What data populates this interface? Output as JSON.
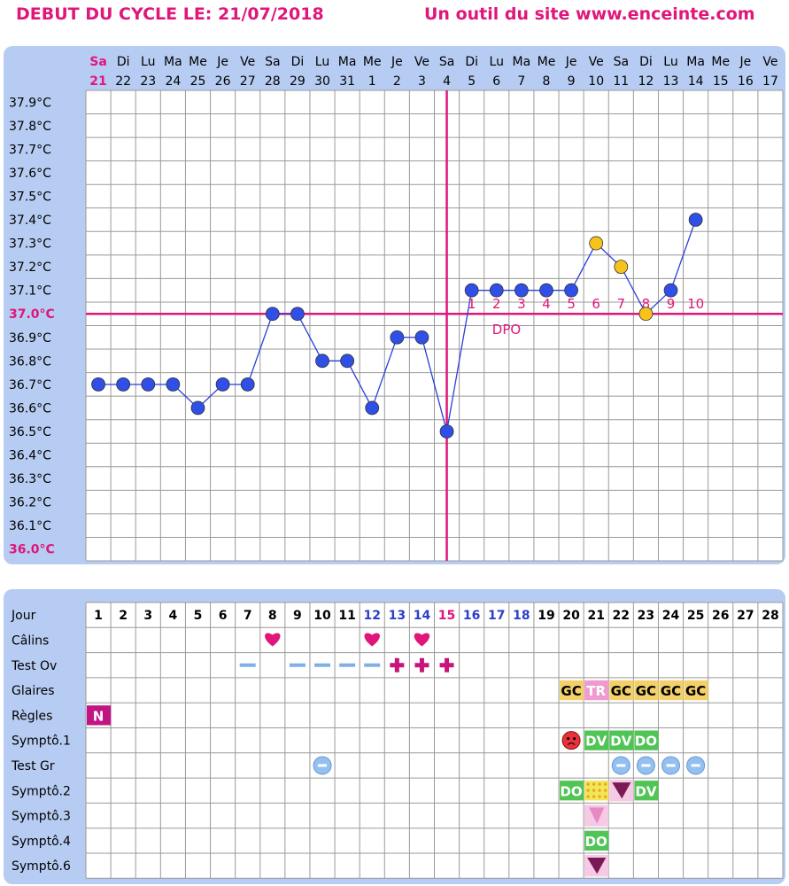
{
  "header": {
    "title": "DEBUT DU CYCLE LE: 21/07/2018",
    "site": "Un outil du site www.enceinte.com"
  },
  "colors": {
    "accent": "#e0167a",
    "panel": "#b7ccf2",
    "point": "#2f4fe6",
    "point_alt": "#f7c31a",
    "line": "#2a3fd8",
    "heart": "#e0167a",
    "plus": "#c8157a",
    "minus": "#7fb0e6",
    "gc_tag": "#f3d069",
    "tr_tag": "#f09ad0",
    "green_tag": "#50c455",
    "n_tag": "#c01583",
    "test_gr": "#93c0ef"
  },
  "chart_data": {
    "type": "line",
    "days": [
      {
        "wd": "Sa",
        "d": "21"
      },
      {
        "wd": "Di",
        "d": "22"
      },
      {
        "wd": "Lu",
        "d": "23"
      },
      {
        "wd": "Ma",
        "d": "24"
      },
      {
        "wd": "Me",
        "d": "25"
      },
      {
        "wd": "Je",
        "d": "26"
      },
      {
        "wd": "Ve",
        "d": "27"
      },
      {
        "wd": "Sa",
        "d": "28"
      },
      {
        "wd": "Di",
        "d": "29"
      },
      {
        "wd": "Lu",
        "d": "30"
      },
      {
        "wd": "Ma",
        "d": "31"
      },
      {
        "wd": "Me",
        "d": "1"
      },
      {
        "wd": "Je",
        "d": "2"
      },
      {
        "wd": "Ve",
        "d": "3"
      },
      {
        "wd": "Sa",
        "d": "4"
      },
      {
        "wd": "Di",
        "d": "5"
      },
      {
        "wd": "Lu",
        "d": "6"
      },
      {
        "wd": "Ma",
        "d": "7"
      },
      {
        "wd": "Me",
        "d": "8"
      },
      {
        "wd": "Je",
        "d": "9"
      },
      {
        "wd": "Ve",
        "d": "10"
      },
      {
        "wd": "Sa",
        "d": "11"
      },
      {
        "wd": "Di",
        "d": "12"
      },
      {
        "wd": "Lu",
        "d": "13"
      },
      {
        "wd": "Ma",
        "d": "14"
      },
      {
        "wd": "Me",
        "d": "15"
      },
      {
        "wd": "Je",
        "d": "16"
      },
      {
        "wd": "Ve",
        "d": "17"
      }
    ],
    "y_ticks": [
      "37.9°C",
      "37.8°C",
      "37.7°C",
      "37.6°C",
      "37.5°C",
      "37.4°C",
      "37.3°C",
      "37.2°C",
      "37.1°C",
      "37.0°C",
      "36.9°C",
      "36.8°C",
      "36.7°C",
      "36.6°C",
      "36.5°C",
      "36.4°C",
      "36.3°C",
      "36.2°C",
      "36.1°C",
      "36.0°C"
    ],
    "ylim": [
      36.0,
      37.9
    ],
    "highlight_ticks": [
      "37.0°C",
      "36.0°C"
    ],
    "temperatures": [
      36.7,
      36.7,
      36.7,
      36.7,
      36.6,
      36.7,
      36.7,
      37.0,
      37.0,
      36.8,
      36.8,
      36.6,
      36.9,
      36.9,
      36.5,
      37.1,
      37.1,
      37.1,
      37.1,
      37.1,
      37.3,
      37.2,
      37.0,
      37.1,
      37.4
    ],
    "alt_color_days": [
      21,
      22,
      23
    ],
    "coverline": 37.0,
    "ovulation_day": 15,
    "dpo_label": "DPO",
    "dpo_numbers": [
      "1",
      "2",
      "3",
      "4",
      "5",
      "6",
      "7",
      "8",
      "9",
      "10"
    ]
  },
  "table": {
    "row_labels": [
      "Jour",
      "Câlins",
      "Test Ov",
      "Glaires",
      "Règles",
      "Symptô.1",
      "Test Gr",
      "Symptô.2",
      "Symptô.3",
      "Symptô.4",
      "Symptô.6"
    ],
    "cycle_days": [
      "1",
      "2",
      "3",
      "4",
      "5",
      "6",
      "7",
      "8",
      "9",
      "10",
      "11",
      "12",
      "13",
      "14",
      "15",
      "16",
      "17",
      "18",
      "19",
      "20",
      "21",
      "22",
      "23",
      "24",
      "25",
      "26",
      "27",
      "28"
    ],
    "day_colors": {
      "12": "blue",
      "13": "blue",
      "14": "blue",
      "15": "pink",
      "16": "blue",
      "17": "blue",
      "18": "blue"
    },
    "calins": [
      8,
      12,
      14
    ],
    "test_ov": [
      {
        "day": 7,
        "result": "-"
      },
      {
        "day": 9,
        "result": "-"
      },
      {
        "day": 10,
        "result": "-"
      },
      {
        "day": 11,
        "result": "-"
      },
      {
        "day": 12,
        "result": "-"
      },
      {
        "day": 13,
        "result": "+"
      },
      {
        "day": 14,
        "result": "+"
      },
      {
        "day": 15,
        "result": "+"
      }
    ],
    "glaires": [
      {
        "day": 20,
        "text": "GC"
      },
      {
        "day": 21,
        "text": "TR"
      },
      {
        "day": 22,
        "text": "GC"
      },
      {
        "day": 23,
        "text": "GC"
      },
      {
        "day": 24,
        "text": "GC"
      },
      {
        "day": 25,
        "text": "GC"
      }
    ],
    "regles": [
      {
        "day": 1,
        "text": "N"
      }
    ],
    "sympto1": [
      {
        "day": 20,
        "icon": "angry-face-icon"
      },
      {
        "day": 21,
        "text": "DV"
      },
      {
        "day": 22,
        "text": "DV"
      },
      {
        "day": 23,
        "text": "DO"
      }
    ],
    "test_gr": [
      10,
      22,
      23,
      24,
      25
    ],
    "sympto2": [
      {
        "day": 20,
        "text": "DO"
      },
      {
        "day": 21,
        "icon": "dotted-square-icon"
      },
      {
        "day": 22,
        "icon": "triangle-icon"
      },
      {
        "day": 23,
        "text": "DV"
      }
    ],
    "sympto3": [
      {
        "day": 21,
        "icon": "pink-shape-icon"
      }
    ],
    "sympto4": [
      {
        "day": 21,
        "text": "DO"
      }
    ],
    "sympto6": [
      {
        "day": 21,
        "icon": "triangle-icon"
      }
    ]
  }
}
